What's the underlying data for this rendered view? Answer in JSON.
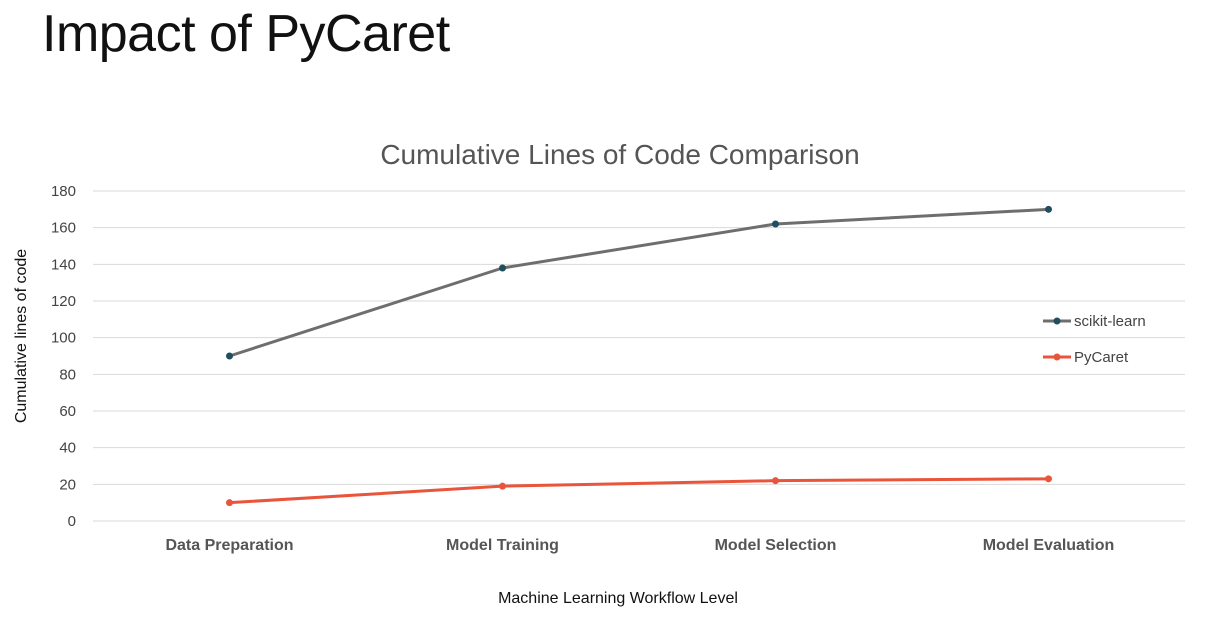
{
  "slide": {
    "title": "Impact of PyCaret"
  },
  "chart_data": {
    "type": "line",
    "title": "Cumulative Lines of Code Comparison",
    "xlabel": "Machine Learning Workflow Level",
    "ylabel": "Cumulative lines of code",
    "categories": [
      "Data Preparation",
      "Model Training",
      "Model Selection",
      "Model Evaluation"
    ],
    "ylim": [
      0,
      180
    ],
    "yticks": [
      0,
      20,
      40,
      60,
      80,
      100,
      120,
      140,
      160,
      180
    ],
    "grid": true,
    "legend_position": "right",
    "series": [
      {
        "name": "scikit-learn",
        "values": [
          90,
          138,
          162,
          170
        ],
        "line_color": "#6e6e6e",
        "marker_color": "#1f4e5f"
      },
      {
        "name": "PyCaret",
        "values": [
          10,
          19,
          22,
          23
        ],
        "line_color": "#e8553b",
        "marker_color": "#e8553b"
      }
    ]
  }
}
